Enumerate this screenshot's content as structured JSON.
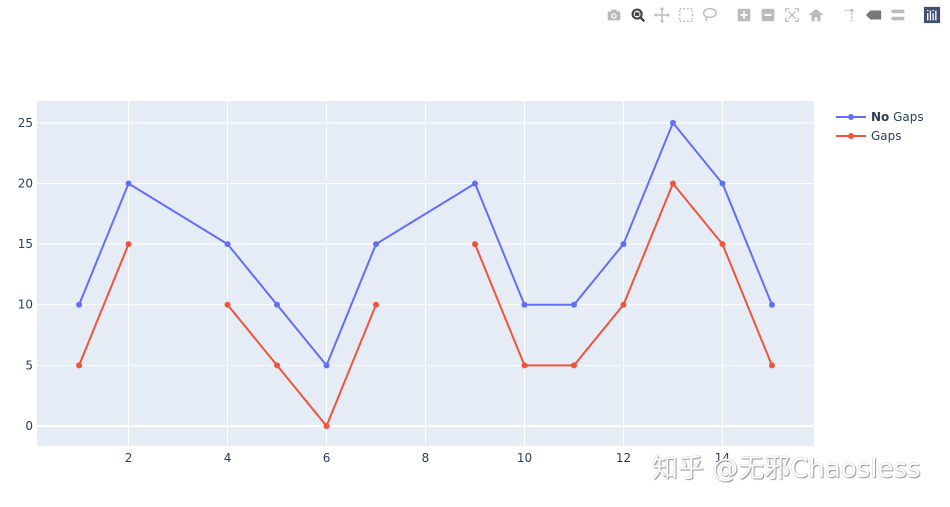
{
  "modebar": {
    "buttons": [
      {
        "name": "camera-icon",
        "title": "Download plot as a png"
      },
      {
        "name": "zoom-icon",
        "title": "Zoom",
        "active": true
      },
      {
        "name": "pan-icon",
        "title": "Pan"
      },
      {
        "name": "box-select-icon",
        "title": "Box Select"
      },
      {
        "name": "lasso-select-icon",
        "title": "Lasso Select"
      },
      {
        "name": "zoom-in-icon",
        "title": "Zoom in"
      },
      {
        "name": "zoom-out-icon",
        "title": "Zoom out"
      },
      {
        "name": "autoscale-icon",
        "title": "Autoscale"
      },
      {
        "name": "home-icon",
        "title": "Reset axes"
      },
      {
        "name": "spike-lines-icon",
        "title": "Toggle Spike Lines"
      },
      {
        "name": "hover-closest-icon",
        "title": "Show closest data on hover"
      },
      {
        "name": "hover-compare-icon",
        "title": "Compare data on hover"
      },
      {
        "name": "plotly-logo-icon",
        "title": "Produced with Plotly"
      }
    ]
  },
  "legend": {
    "items": [
      {
        "bold": "No",
        "label": " Gaps",
        "color": "#636efa"
      },
      {
        "bold": "",
        "label": "Gaps",
        "color": "#EF553B"
      }
    ]
  },
  "watermark": "知乎 @无邪Chaosless",
  "colors": {
    "plot_bg": "#e5ecf6",
    "grid": "#ffffff",
    "series_blue": "#636efa",
    "series_red": "#EF553B",
    "tick_text": "#2a3f5f"
  },
  "chart_data": {
    "type": "line",
    "title": "",
    "xlabel": "",
    "ylabel": "",
    "x": [
      1,
      2,
      3,
      4,
      5,
      6,
      7,
      8,
      9,
      10,
      11,
      12,
      13,
      14,
      15
    ],
    "series": [
      {
        "name": "No Gaps",
        "color": "#636efa",
        "connectgaps": true,
        "values": [
          10,
          20,
          null,
          15,
          10,
          5,
          15,
          null,
          20,
          10,
          10,
          15,
          25,
          20,
          10
        ]
      },
      {
        "name": "Gaps",
        "color": "#EF553B",
        "connectgaps": false,
        "values": [
          5,
          15,
          null,
          10,
          5,
          0,
          10,
          null,
          15,
          5,
          5,
          10,
          20,
          15,
          5
        ]
      }
    ],
    "xticks": [
      2,
      4,
      6,
      8,
      10,
      12,
      14
    ],
    "yticks": [
      0,
      5,
      10,
      15,
      20,
      25
    ],
    "xlim": [
      0.15,
      15.85
    ],
    "ylim": [
      -1.65,
      26.8
    ],
    "grid": true,
    "legend_position": "right-top",
    "mode": "lines+markers"
  }
}
